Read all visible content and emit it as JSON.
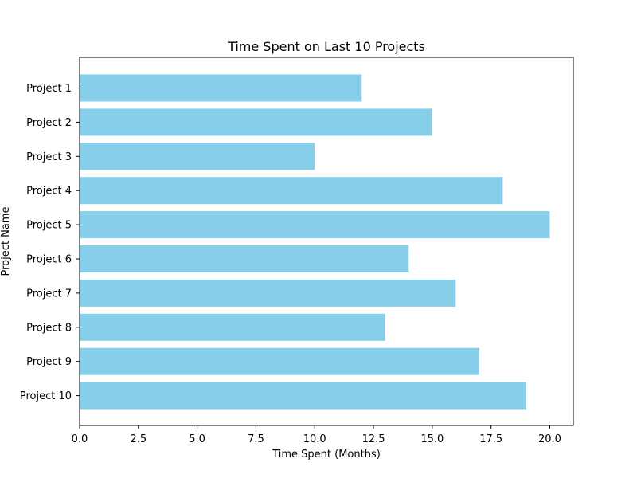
{
  "chart_data": {
    "type": "bar",
    "orientation": "horizontal",
    "title": "Time Spent on Last 10 Projects",
    "xlabel": "Time Spent (Months)",
    "ylabel": "Project Name",
    "categories": [
      "Project 1",
      "Project 2",
      "Project 3",
      "Project 4",
      "Project 5",
      "Project 6",
      "Project 7",
      "Project 8",
      "Project 9",
      "Project 10"
    ],
    "values": [
      12,
      15,
      10,
      18,
      20,
      14,
      16,
      13,
      17,
      19
    ],
    "xlim": [
      0,
      21
    ],
    "xticks": [
      0.0,
      2.5,
      5.0,
      7.5,
      10.0,
      12.5,
      15.0,
      17.5,
      20.0
    ],
    "xtick_labels": [
      "0.0",
      "2.5",
      "5.0",
      "7.5",
      "10.0",
      "12.5",
      "15.0",
      "17.5",
      "20.0"
    ],
    "grid": false,
    "legend": "none",
    "bar_color": "#87ceeb"
  }
}
